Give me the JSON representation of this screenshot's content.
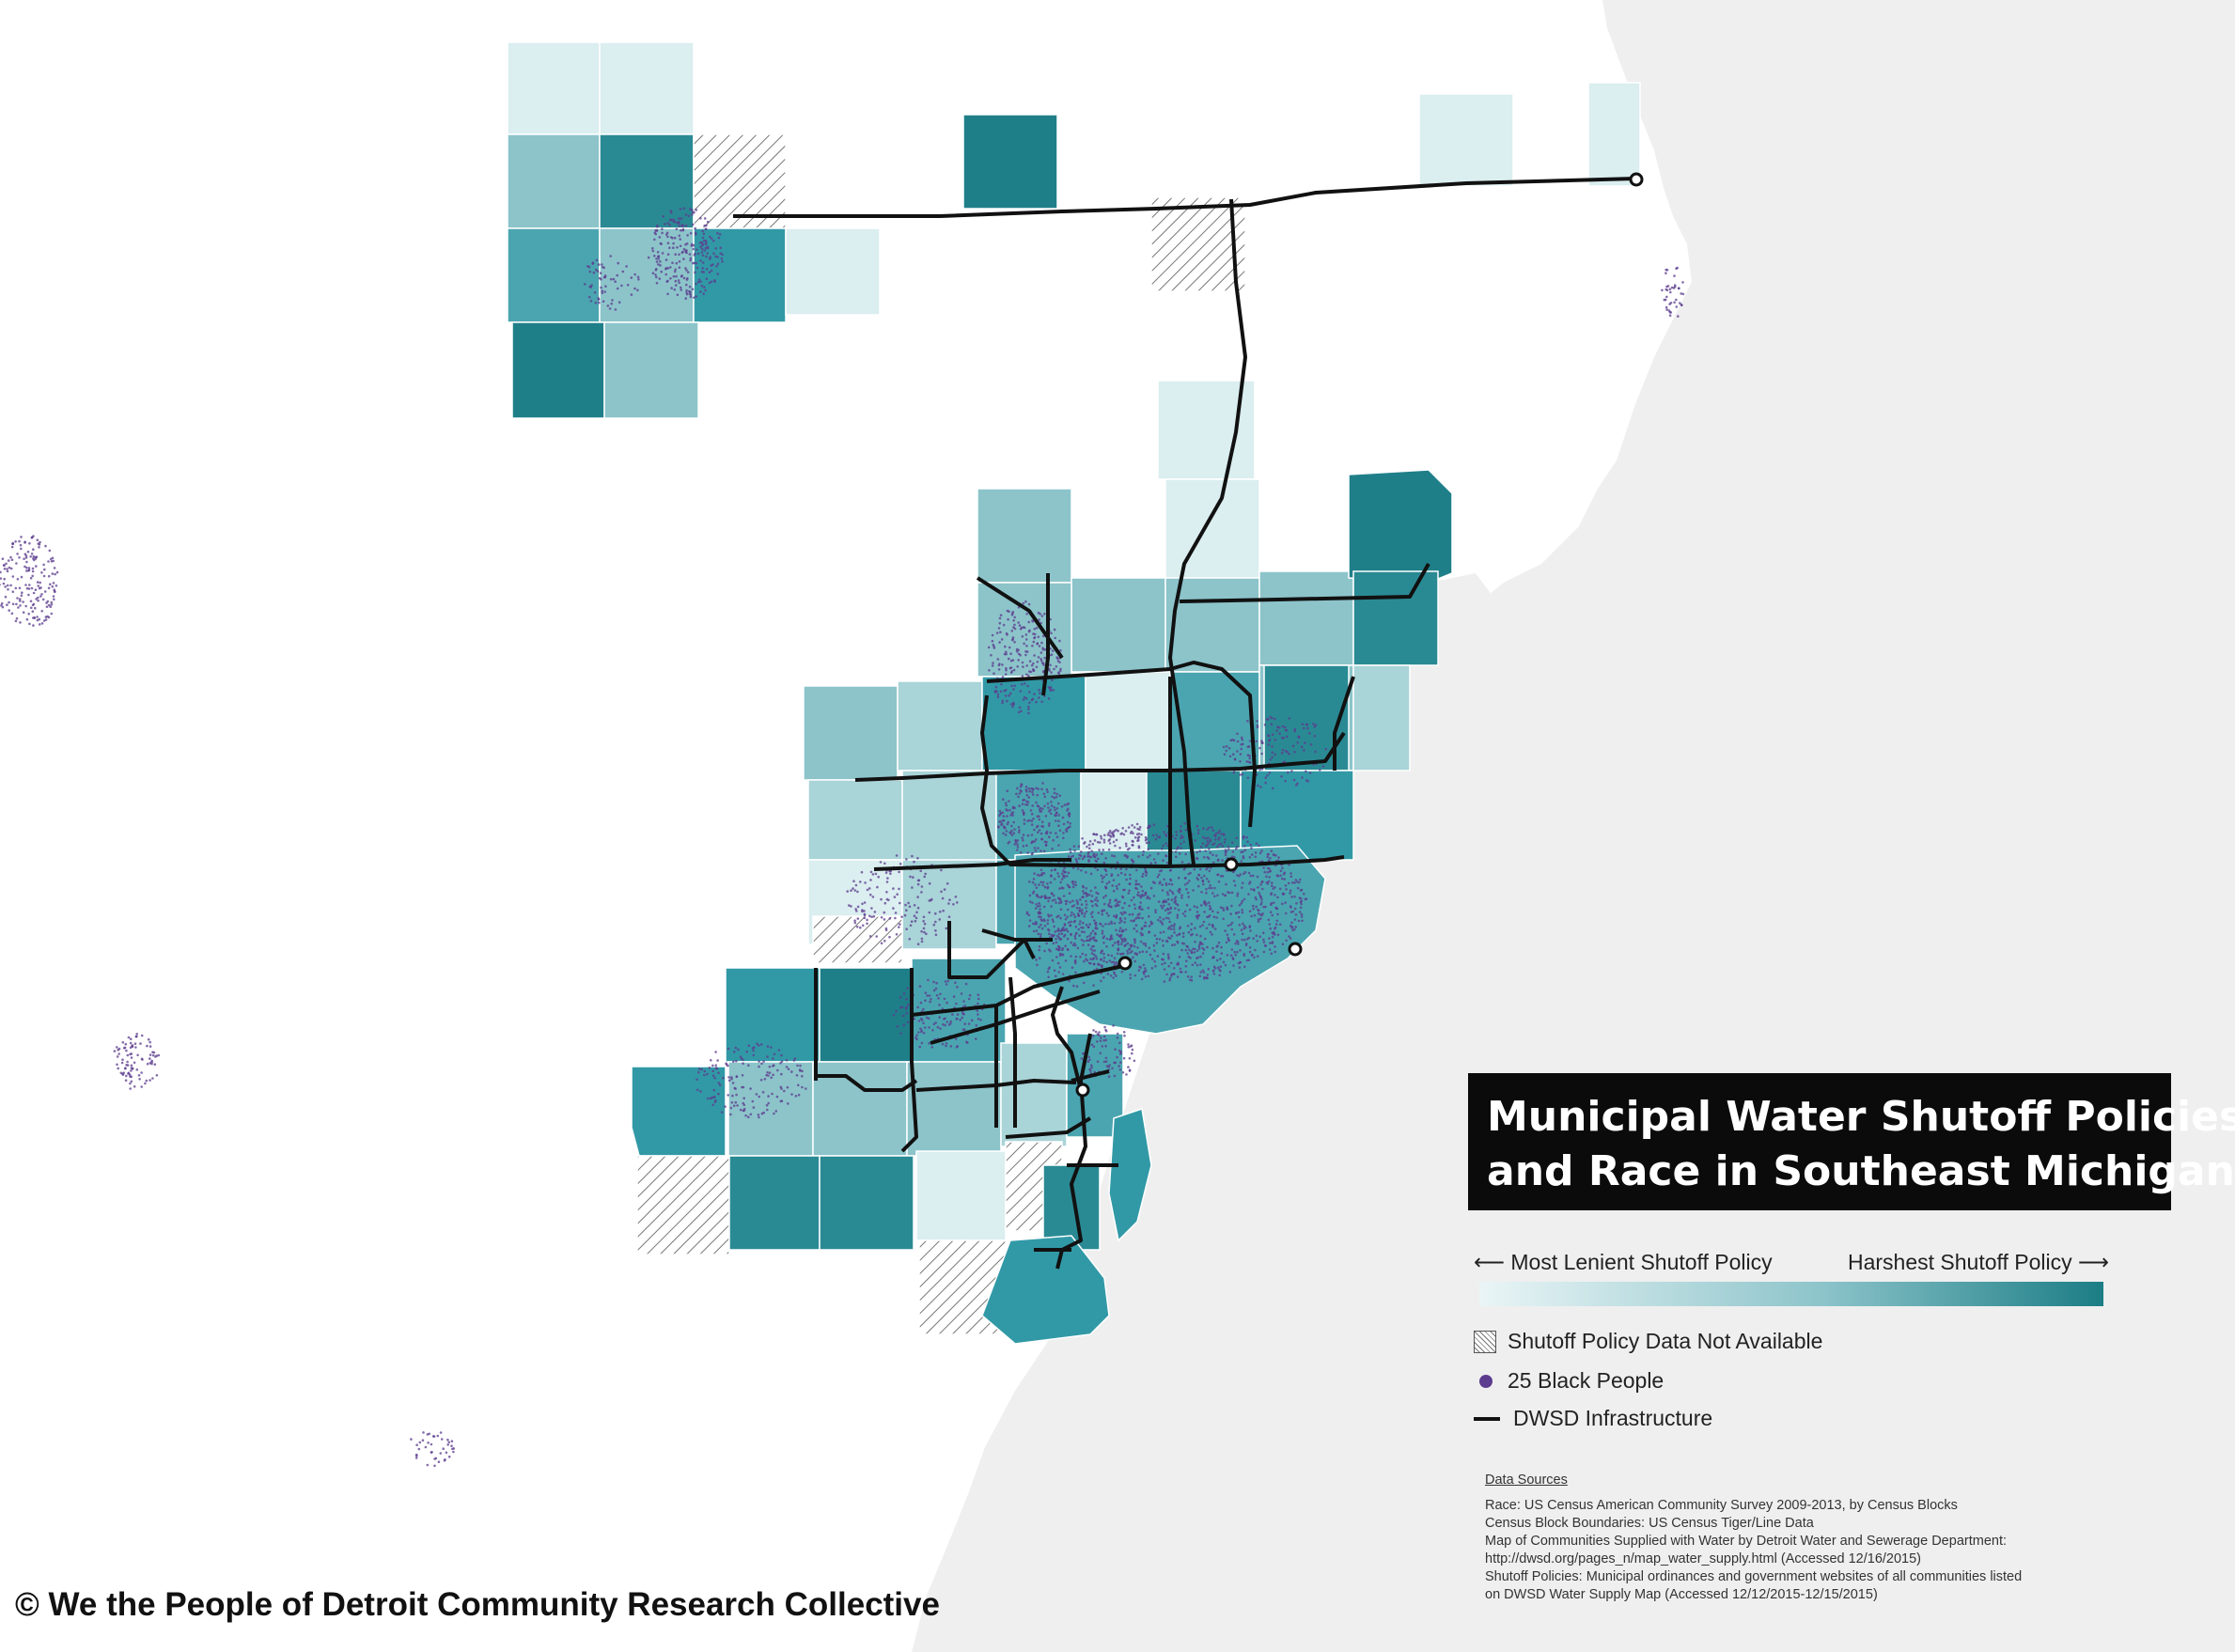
{
  "title": {
    "line1": "Municipal Water Shutoff Policies",
    "line2": "and Race in Southeast Michigan"
  },
  "legend": {
    "gradient_left": "⟵ Most Lenient Shutoff Policy",
    "gradient_right": "Harshest Shutoff Policy ⟶",
    "colors": {
      "lenient": "#eaf5f6",
      "mid": "#8cc4ca",
      "harsh": "#1c7d85",
      "dot": "#5c3c8e",
      "infrastructure": "#111111",
      "water": "#efefef"
    },
    "not_available": "Shutoff Policy Data Not Available",
    "dot_label": "25 Black People",
    "infrastructure_label": "DWSD Infrastructure"
  },
  "sources": {
    "header": "Data Sources",
    "lines": [
      "Race: US Census American Community Survey 2009-2013, by Census Blocks",
      "Census Block Boundaries: US Census Tiger/Line Data",
      "Map of Communities Supplied with Water by Detroit Water and Sewerage Department:",
      "http://dwsd.org/pages_n/map_water_supply.html (Accessed 12/16/2015)",
      "Shutoff Policies: Municipal ordinances and government websites of all communities listed",
      "on DWSD Water Supply Map (Accessed 12/12/2015-12/15/2015)"
    ]
  },
  "credit": "© We the People of Detroit Community Research Collective"
}
